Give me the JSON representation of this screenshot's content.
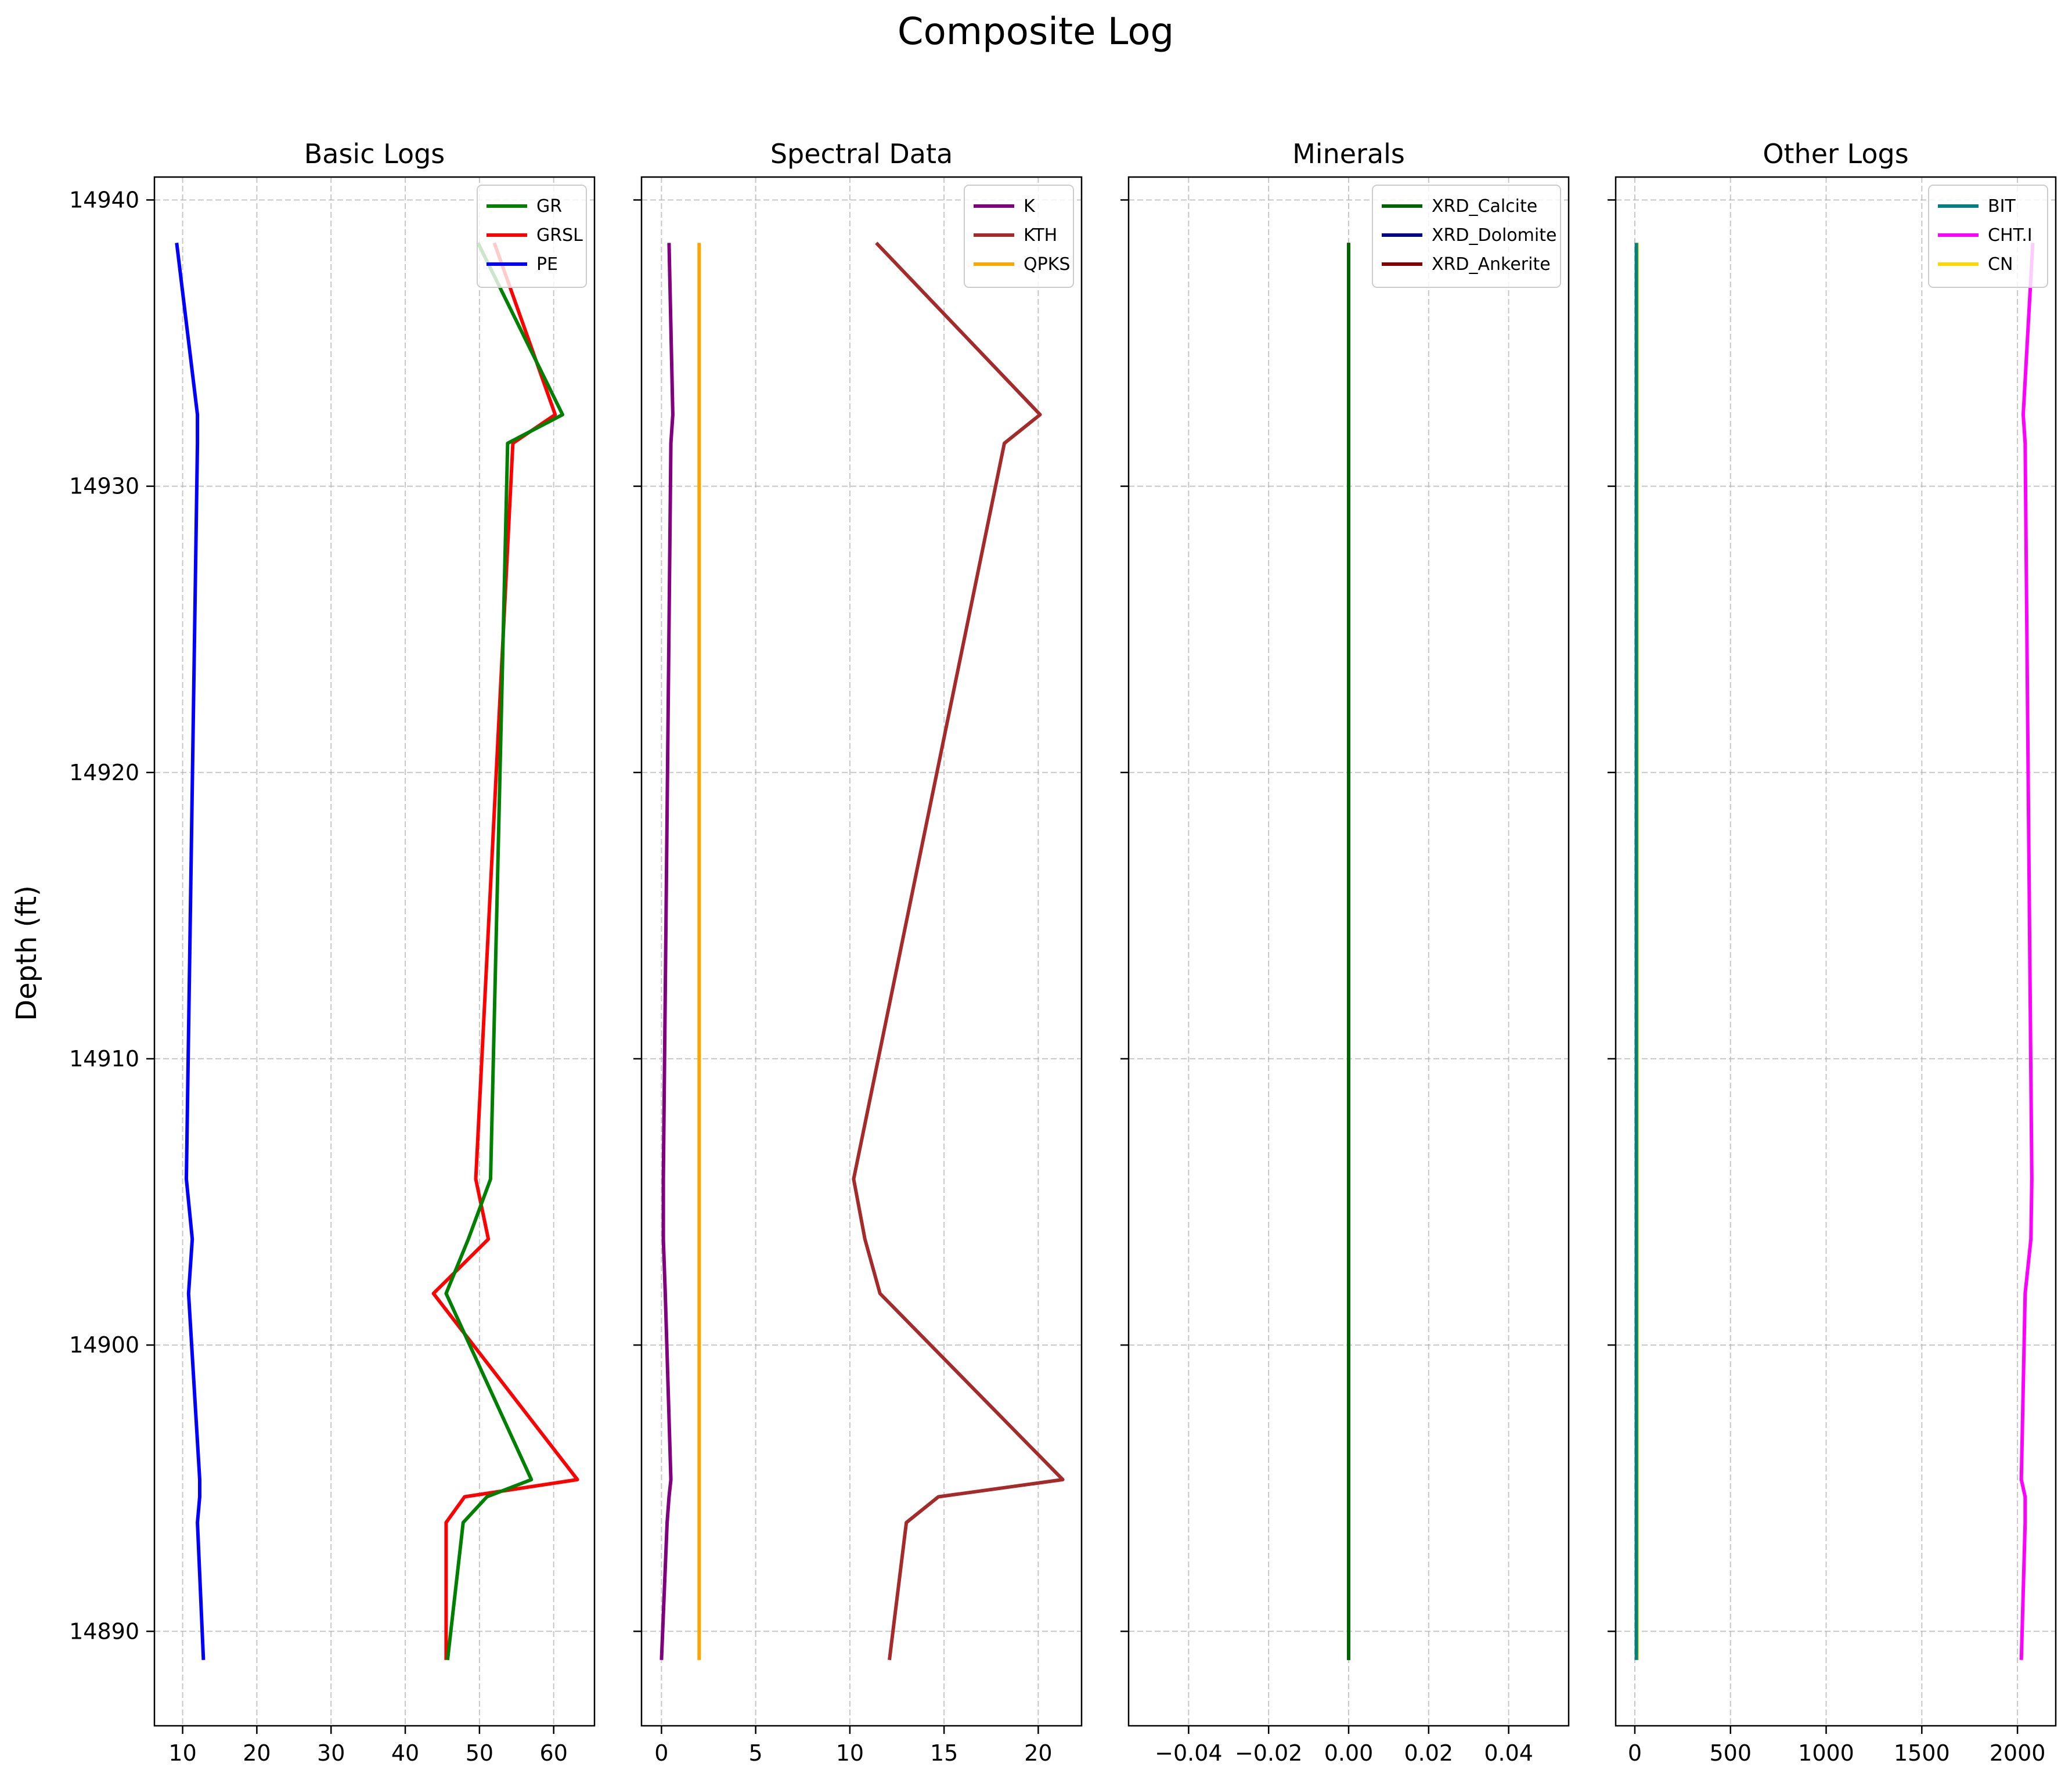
{
  "figure": {
    "suptitle": "Composite Log",
    "ylabel": "Depth (ft)"
  },
  "chart_data": [
    {
      "type": "line",
      "title": "Basic Logs",
      "xlim": [
        6.2,
        65.5
      ],
      "xticks": [
        10,
        20,
        30,
        40,
        50,
        60
      ],
      "ylim": [
        14940.8,
        14886.7
      ],
      "yticks": [
        14890,
        14900,
        14910,
        14920,
        14930,
        14940
      ],
      "grid": true,
      "legend_position": "upper right",
      "y": [
        14889,
        14893.8,
        14894.7,
        14895.3,
        14901.8,
        14903.7,
        14905.8,
        14931.5,
        14932.5,
        14938.5
      ],
      "series": [
        {
          "name": "GR",
          "color": "#008000",
          "values": [
            45.7,
            47.8,
            51.0,
            57.0,
            45.5,
            48.5,
            51.5,
            53.8,
            61.2,
            49.8
          ]
        },
        {
          "name": "GRSL",
          "color": "#ff0000",
          "values": [
            45.5,
            45.5,
            48.0,
            63.2,
            43.8,
            51.2,
            49.5,
            54.5,
            60.2,
            52.0
          ]
        },
        {
          "name": "PE",
          "color": "#0000ff",
          "values": [
            12.8,
            12.0,
            12.3,
            12.3,
            10.8,
            11.3,
            10.5,
            12.0,
            12.0,
            9.2
          ]
        }
      ]
    },
    {
      "type": "line",
      "title": "Spectral Data",
      "xlim": [
        -1.06,
        22.3
      ],
      "xticks": [
        0,
        5,
        10,
        15,
        20
      ],
      "ylim": [
        14940.8,
        14886.7
      ],
      "yticks": [
        14890,
        14900,
        14910,
        14920,
        14930,
        14940
      ],
      "grid": true,
      "legend_position": "upper right",
      "y": [
        14889,
        14893.8,
        14894.7,
        14895.3,
        14901.8,
        14903.7,
        14905.8,
        14931.5,
        14932.5,
        14938.5
      ],
      "series": [
        {
          "name": "K",
          "color": "#800080",
          "values": [
            0.0,
            0.3,
            0.4,
            0.5,
            0.2,
            0.1,
            0.1,
            0.5,
            0.6,
            0.4
          ]
        },
        {
          "name": "KTH",
          "color": "#a52a2a",
          "values": [
            12.1,
            13.0,
            14.7,
            21.3,
            11.6,
            10.8,
            10.2,
            18.2,
            20.1,
            11.4
          ]
        },
        {
          "name": "QPKS",
          "color": "#ffa500",
          "values": [
            2.0,
            2.0,
            2.0,
            2.0,
            2.0,
            2.0,
            2.0,
            2.0,
            2.0,
            2.0
          ]
        }
      ]
    },
    {
      "type": "line",
      "title": "Minerals",
      "xlim": [
        -0.055,
        0.055
      ],
      "xticks": [
        -0.04,
        -0.02,
        0.0,
        0.02,
        0.04
      ],
      "xticklabels": [
        "−0.04",
        "−0.02",
        "0.00",
        "0.02",
        "0.04"
      ],
      "ylim": [
        14940.8,
        14886.7
      ],
      "yticks": [
        14890,
        14900,
        14910,
        14920,
        14930,
        14940
      ],
      "grid": true,
      "legend_position": "upper right",
      "y": [
        14889,
        14893.8,
        14894.7,
        14895.3,
        14901.8,
        14903.7,
        14905.8,
        14931.5,
        14932.5,
        14938.5
      ],
      "series": [
        {
          "name": "XRD_Calcite",
          "color": "#006400",
          "values": [
            0,
            0,
            0,
            0,
            0,
            0,
            0,
            0,
            0,
            0
          ]
        },
        {
          "name": "XRD_Dolomite",
          "color": "#00008b",
          "values": [
            0,
            0,
            0,
            0,
            0,
            0,
            0,
            0,
            0,
            0
          ]
        },
        {
          "name": "XRD_Ankerite",
          "color": "#800000",
          "values": [
            0,
            0,
            0,
            0,
            0,
            0,
            0,
            0,
            0,
            0
          ]
        }
      ]
    },
    {
      "type": "line",
      "title": "Other Logs",
      "xlim": [
        -100,
        2200
      ],
      "xticks": [
        0,
        500,
        1000,
        1500,
        2000
      ],
      "ylim": [
        14940.8,
        14886.7
      ],
      "yticks": [
        14890,
        14900,
        14910,
        14920,
        14930,
        14940
      ],
      "grid": true,
      "legend_position": "upper right",
      "y": [
        14889,
        14893.8,
        14894.7,
        14895.3,
        14901.8,
        14903.7,
        14905.8,
        14931.5,
        14932.5,
        14938.5
      ],
      "series": [
        {
          "name": "BIT",
          "color": "#008080",
          "values": [
            8,
            8,
            8,
            8,
            8,
            8,
            8,
            8,
            8,
            8
          ]
        },
        {
          "name": "CHT.I",
          "color": "#ff00ff",
          "values": [
            2020,
            2040,
            2040,
            2020,
            2040,
            2070,
            2075,
            2040,
            2030,
            2080
          ]
        },
        {
          "name": "CN",
          "color": "#ffd700",
          "values": [
            12,
            12,
            12,
            12,
            12,
            12,
            12,
            12,
            12,
            12
          ]
        }
      ]
    }
  ]
}
